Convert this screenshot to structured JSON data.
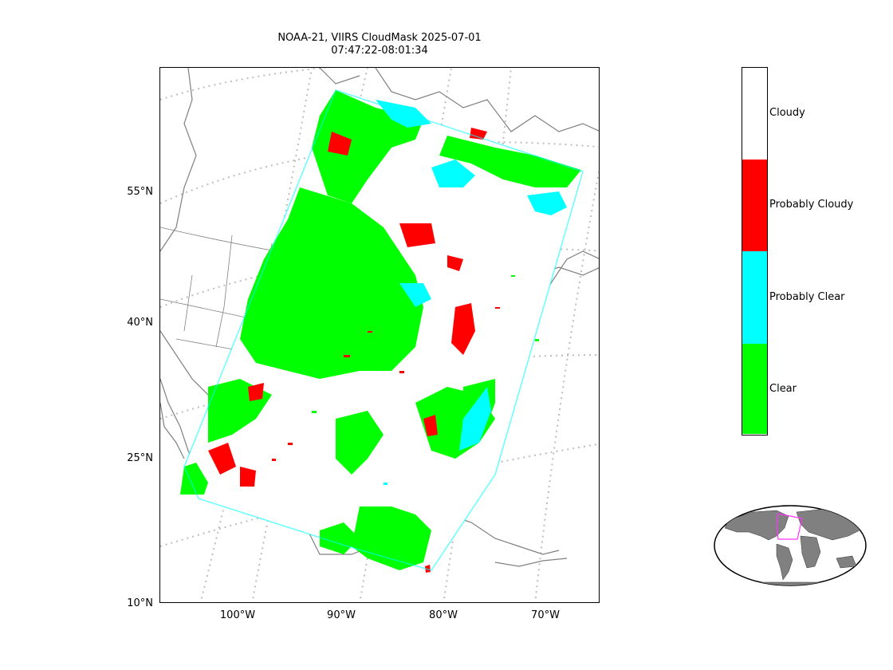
{
  "title": {
    "line1": "NOAA-21, VIIRS CloudMask 2025-07-01",
    "line2": "07:47:22-08:01:34"
  },
  "map": {
    "lat_ticks": [
      "55°N",
      "40°N",
      "25°N",
      "10°N"
    ],
    "lon_ticks": [
      "100°W",
      "90°W",
      "80°W",
      "70°W"
    ],
    "graticule": "dotted-gray",
    "coastline_color": "#808080",
    "swath_background": "#ffffff"
  },
  "colorbar": {
    "categories": [
      {
        "label": "Cloudy",
        "color": "#ffffff"
      },
      {
        "label": "Probably Cloudy",
        "color": "#ff0000"
      },
      {
        "label": "Probably Clear",
        "color": "#00ffff"
      },
      {
        "label": "Clear",
        "color": "#00ff00"
      }
    ]
  },
  "inset": {
    "land_color": "#808080",
    "swath_outline_color": "#ff33ff"
  }
}
